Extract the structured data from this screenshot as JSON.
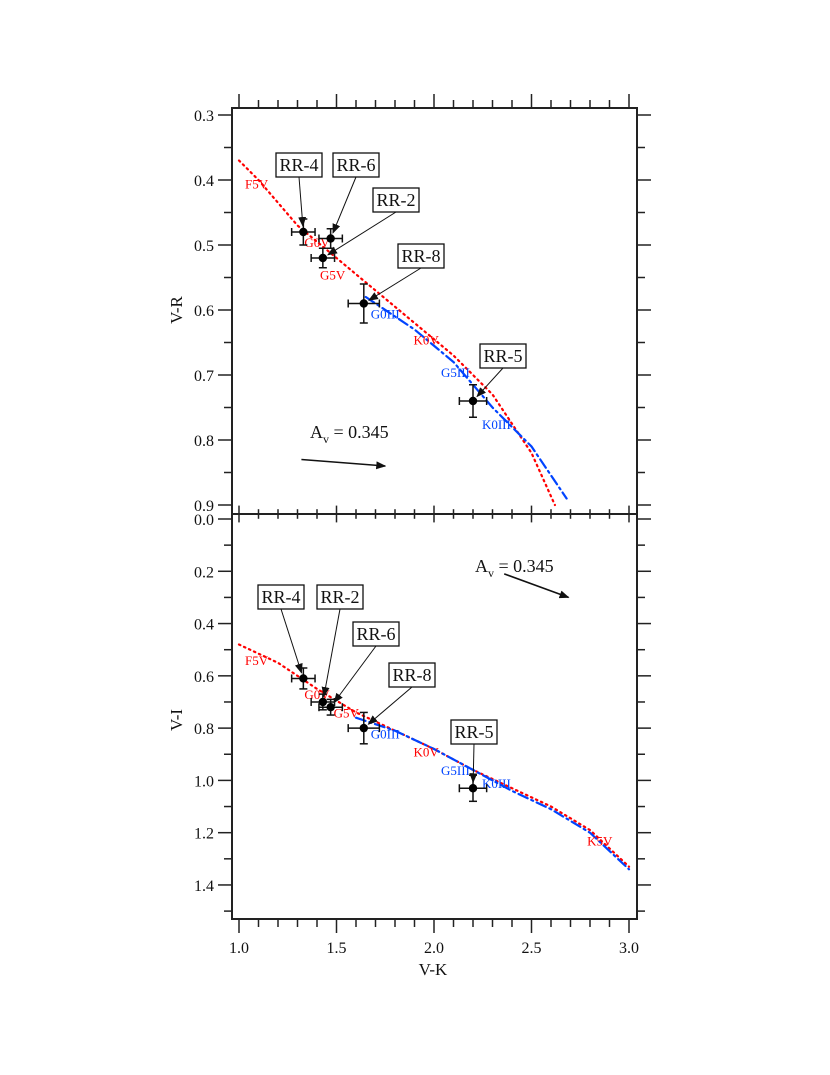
{
  "chart_data": [
    {
      "type": "scatter",
      "panel": "top",
      "xlabel": "V-K",
      "ylabel": "V-R",
      "xlim": [
        1.0,
        3.0
      ],
      "ylim": [
        0.9,
        0.3
      ],
      "y_inverted": true,
      "yticks": [
        "0.3",
        "0.4",
        "0.5",
        "0.6",
        "0.7",
        "0.8",
        "0.9"
      ],
      "points": [
        {
          "name": "RR-4",
          "x": 1.33,
          "y": 0.48,
          "xerr": 0.06,
          "yerr": 0.02
        },
        {
          "name": "RR-6",
          "x": 1.47,
          "y": 0.49,
          "xerr": 0.06,
          "yerr": 0.015
        },
        {
          "name": "RR-2",
          "x": 1.43,
          "y": 0.52,
          "xerr": 0.06,
          "yerr": 0.015
        },
        {
          "name": "RR-8",
          "x": 1.64,
          "y": 0.59,
          "xerr": 0.08,
          "yerr": 0.03
        },
        {
          "name": "RR-5",
          "x": 2.2,
          "y": 0.74,
          "xerr": 0.07,
          "yerr": 0.025
        }
      ],
      "curves": [
        {
          "style": "dotted",
          "color": "#ff0000",
          "x": [
            1.0,
            1.1,
            1.3,
            1.5,
            1.7,
            1.9,
            2.1,
            2.3,
            2.5,
            2.62
          ],
          "y": [
            0.37,
            0.4,
            0.47,
            0.52,
            0.57,
            0.62,
            0.67,
            0.73,
            0.82,
            0.9
          ]
        },
        {
          "style": "dash-dot",
          "color": "#0044ff",
          "x": [
            1.65,
            1.9,
            2.1,
            2.3,
            2.5,
            2.68
          ],
          "y": [
            0.58,
            0.63,
            0.68,
            0.75,
            0.81,
            0.89
          ]
        }
      ],
      "spectral_labels": [
        {
          "text": "F5V",
          "x": 1.09,
          "y": 0.405,
          "color": "#ff0000"
        },
        {
          "text": "G0V",
          "x": 1.4,
          "y": 0.495,
          "color": "#ff0000"
        },
        {
          "text": "G5V",
          "x": 1.48,
          "y": 0.545,
          "color": "#ff0000"
        },
        {
          "text": "G0III",
          "x": 1.75,
          "y": 0.605,
          "color": "#0044ff"
        },
        {
          "text": "K0V",
          "x": 1.96,
          "y": 0.645,
          "color": "#ff0000"
        },
        {
          "text": "G5III",
          "x": 2.11,
          "y": 0.695,
          "color": "#0044ff"
        },
        {
          "text": "K0III",
          "x": 2.32,
          "y": 0.775,
          "color": "#0044ff"
        }
      ],
      "reddening": {
        "label": "A",
        "subscript": "v",
        "value_text": " = 0.345",
        "from": [
          1.32,
          0.83
        ],
        "to": [
          1.75,
          0.84
        ]
      }
    },
    {
      "type": "scatter",
      "panel": "bottom",
      "xlabel": "V-K",
      "ylabel": "V-I",
      "xlim": [
        1.0,
        3.0
      ],
      "ylim": [
        1.55,
        0.0
      ],
      "y_inverted": true,
      "xticks": [
        "1.0",
        "1.5",
        "2.0",
        "2.5",
        "3.0"
      ],
      "yticks": [
        "0.0",
        "0.2",
        "0.4",
        "0.6",
        "0.8",
        "1.0",
        "1.2",
        "1.4"
      ],
      "points": [
        {
          "name": "RR-4",
          "x": 1.33,
          "y": 0.61,
          "xerr": 0.06,
          "yerr": 0.04
        },
        {
          "name": "RR-2",
          "x": 1.43,
          "y": 0.7,
          "xerr": 0.06,
          "yerr": 0.03
        },
        {
          "name": "RR-6",
          "x": 1.47,
          "y": 0.72,
          "xerr": 0.06,
          "yerr": 0.03
        },
        {
          "name": "RR-8",
          "x": 1.64,
          "y": 0.8,
          "xerr": 0.08,
          "yerr": 0.06
        },
        {
          "name": "RR-5",
          "x": 2.2,
          "y": 1.03,
          "xerr": 0.07,
          "yerr": 0.05
        }
      ],
      "curves": [
        {
          "style": "dotted",
          "color": "#ff0000",
          "x": [
            1.0,
            1.2,
            1.4,
            1.6,
            1.8,
            2.0,
            2.2,
            2.4,
            2.6,
            2.8,
            3.0
          ],
          "y": [
            0.48,
            0.55,
            0.65,
            0.74,
            0.81,
            0.88,
            0.96,
            1.03,
            1.1,
            1.19,
            1.33
          ]
        },
        {
          "style": "dash-dot",
          "color": "#0044ff",
          "x": [
            1.6,
            1.8,
            2.0,
            2.2,
            2.4,
            2.6,
            2.8,
            3.0
          ],
          "y": [
            0.76,
            0.81,
            0.88,
            0.96,
            1.04,
            1.11,
            1.2,
            1.34
          ]
        }
      ],
      "spectral_labels": [
        {
          "text": "F5V",
          "x": 1.09,
          "y": 0.54,
          "color": "#ff0000"
        },
        {
          "text": "G0V",
          "x": 1.4,
          "y": 0.67,
          "color": "#ff0000"
        },
        {
          "text": "G5V",
          "x": 1.55,
          "y": 0.74,
          "color": "#ff0000"
        },
        {
          "text": "G0III",
          "x": 1.75,
          "y": 0.82,
          "color": "#0044ff"
        },
        {
          "text": "K0V",
          "x": 1.96,
          "y": 0.89,
          "color": "#ff0000"
        },
        {
          "text": "G5III",
          "x": 2.11,
          "y": 0.96,
          "color": "#0044ff"
        },
        {
          "text": "K0III",
          "x": 2.32,
          "y": 1.01,
          "color": "#0044ff"
        },
        {
          "text": "K5V",
          "x": 2.85,
          "y": 1.23,
          "color": "#ff0000"
        }
      ],
      "reddening": {
        "label": "A",
        "subscript": "v",
        "value_text": " = 0.345",
        "from": [
          2.36,
          0.21
        ],
        "to": [
          2.69,
          0.3
        ]
      }
    }
  ]
}
